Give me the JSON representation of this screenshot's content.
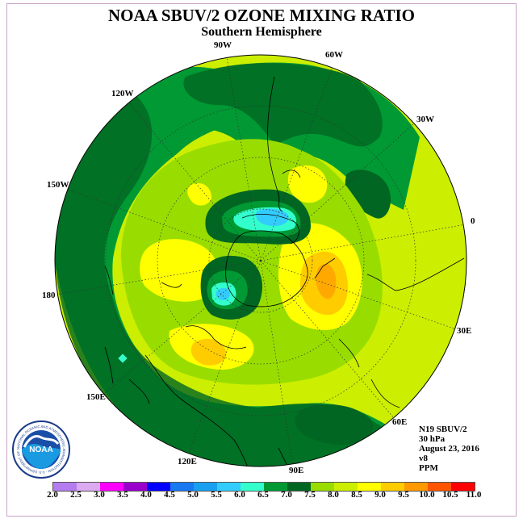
{
  "title": "NOAA SBUV/2 OZONE MIXING RATIO",
  "subtitle": "Southern Hemisphere",
  "logo": {
    "text": "NOAA",
    "ring_text": "NATIONAL OCEANIC AND ATMOSPHERIC ADMINISTRATION · U.S. DEPARTMENT OF COMMERCE"
  },
  "info": {
    "satellite": "N19 SBUV/2",
    "level": "30 hPa",
    "date": "August 23, 2016",
    "version": "v8",
    "units": "PPM"
  },
  "longitude_labels": [
    "90W",
    "60W",
    "30W",
    "0",
    "30E",
    "60E",
    "90E",
    "120E",
    "150E",
    "180",
    "150W",
    "120W"
  ],
  "colorbar": {
    "ticks": [
      "2.0",
      "2.5",
      "3.0",
      "3.5",
      "4.0",
      "4.5",
      "5.0",
      "5.5",
      "6.0",
      "6.5",
      "7.0",
      "7.5",
      "8.0",
      "8.5",
      "9.0",
      "9.5",
      "10.0",
      "10.5",
      "11.0"
    ],
    "colors": [
      "#b57cf0",
      "#dcaaf0",
      "#ff00ff",
      "#9900cc",
      "#0000ff",
      "#1a78f0",
      "#1aa0f0",
      "#33ccff",
      "#33ffcc",
      "#009933",
      "#006622",
      "#99dd00",
      "#ccee00",
      "#ffff00",
      "#ffcc00",
      "#ff9900",
      "#ff5500",
      "#ff0000",
      "#884422"
    ]
  }
}
